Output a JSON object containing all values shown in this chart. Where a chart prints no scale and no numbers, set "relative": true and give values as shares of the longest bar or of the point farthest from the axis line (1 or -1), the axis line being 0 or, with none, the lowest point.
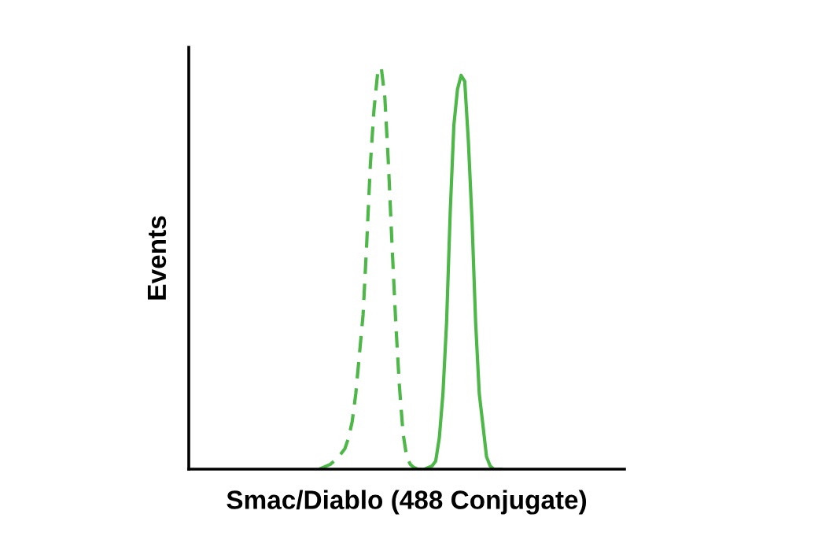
{
  "chart_data": {
    "type": "line",
    "relative": true,
    "xlabel": "Smac/Diablo (488 Conjugate)",
    "ylabel": "Events",
    "legend": false,
    "grid": false,
    "categories": [
      null,
      null,
      null,
      null,
      null,
      null,
      null,
      null,
      null,
      null,
      null,
      null,
      null,
      null,
      null,
      null,
      null,
      null,
      null,
      null,
      null,
      null,
      null,
      null,
      null,
      null,
      null,
      null,
      null,
      null,
      null,
      null,
      null,
      null,
      null,
      null,
      null,
      null,
      null,
      null,
      null,
      null,
      null,
      null,
      null,
      null,
      null,
      null,
      null,
      null,
      null,
      null,
      null,
      null,
      null,
      null,
      null,
      null,
      null,
      null,
      null,
      null,
      null,
      null,
      null,
      null,
      null,
      null,
      null,
      null,
      null,
      null,
      null,
      null,
      null,
      null,
      null,
      null,
      null,
      null,
      null,
      null,
      null,
      null,
      null,
      null,
      null,
      null,
      null,
      null,
      null,
      null,
      null,
      null,
      null,
      null,
      null,
      null,
      null,
      null,
      null,
      null,
      null,
      null,
      null,
      null,
      null,
      null,
      null,
      null,
      null,
      null,
      null,
      null,
      null,
      null,
      null,
      null,
      null,
      null,
      null
    ],
    "series": [
      {
        "color": "#4db848",
        "line_style": "dashed",
        "values": [
          null,
          null,
          null,
          null,
          null,
          null,
          null,
          null,
          null,
          null,
          null,
          null,
          null,
          null,
          null,
          null,
          null,
          null,
          null,
          null,
          null,
          null,
          null,
          null,
          null,
          null,
          null,
          null,
          null,
          null,
          null,
          null,
          null,
          null,
          null,
          null,
          0,
          0.004,
          0.008,
          0.012,
          0.02,
          0.027,
          0.039,
          0.051,
          0.078,
          0.118,
          0.188,
          0.286,
          0.384,
          0.561,
          0.757,
          0.894,
          0.984,
          1,
          0.925,
          0.757,
          0.553,
          0.365,
          0.208,
          0.09,
          0.031,
          0.012,
          0.004,
          0,
          0,
          0,
          null,
          null,
          null,
          null,
          null,
          null,
          null,
          null,
          null,
          null,
          null,
          null,
          null,
          null,
          null,
          null,
          null,
          null,
          null,
          null,
          null,
          null,
          null,
          null,
          null,
          null,
          null,
          null,
          null,
          null,
          null,
          null,
          null,
          null,
          null,
          null,
          null,
          null,
          null,
          null,
          null,
          null,
          null,
          null,
          null,
          null,
          null,
          null,
          null,
          null,
          null,
          null,
          null,
          null,
          null
        ]
      },
      {
        "color": "#4db848",
        "line_style": "solid",
        "values": [
          null,
          null,
          null,
          null,
          null,
          null,
          null,
          null,
          null,
          null,
          null,
          null,
          null,
          null,
          null,
          null,
          null,
          null,
          null,
          null,
          null,
          null,
          null,
          null,
          null,
          null,
          null,
          null,
          null,
          null,
          null,
          null,
          null,
          null,
          null,
          null,
          null,
          null,
          null,
          null,
          null,
          null,
          null,
          null,
          null,
          null,
          null,
          null,
          null,
          null,
          null,
          null,
          null,
          null,
          null,
          null,
          null,
          null,
          null,
          null,
          null,
          null,
          null,
          null,
          null,
          0,
          0.004,
          0.008,
          0.02,
          0.078,
          0.188,
          0.365,
          0.639,
          0.855,
          0.945,
          0.98,
          0.965,
          0.816,
          0.62,
          0.365,
          0.188,
          0.11,
          0.031,
          0.008,
          0,
          0,
          0,
          null,
          null,
          null,
          null,
          null,
          null,
          null,
          null,
          null,
          null,
          null,
          null,
          null,
          null,
          null,
          null,
          null,
          null,
          null,
          null,
          null,
          null,
          null,
          null,
          null,
          null,
          null,
          null,
          null,
          null,
          null,
          null,
          null,
          null
        ]
      }
    ]
  }
}
